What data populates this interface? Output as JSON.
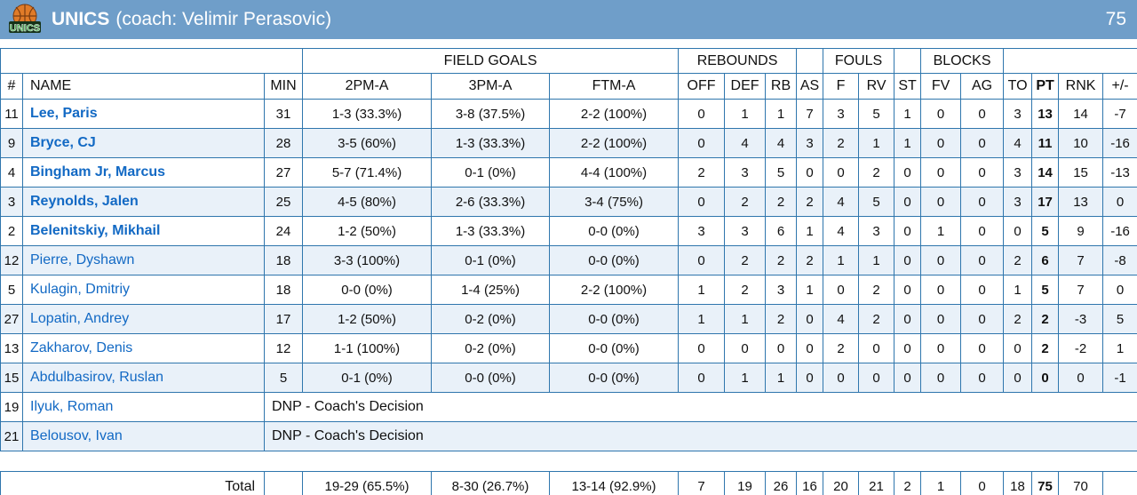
{
  "header": {
    "team_name": "UNICS",
    "coach_label": "(coach: Velimir Perasovic)",
    "score": "75",
    "bar_color": "#6f9ec9",
    "logo_icon": "unics-basketball-logo"
  },
  "colors": {
    "border": "#2f76ad",
    "row_stripe": "#e9f1f9",
    "total_row_bg": "#dbe8f5",
    "player_link": "#1269c4",
    "header_bar": "#6f9ec9"
  },
  "table": {
    "group_headers": [
      {
        "label": "",
        "span": 3
      },
      {
        "label": "FIELD GOALS",
        "span": 3
      },
      {
        "label": "REBOUNDS",
        "span": 3
      },
      {
        "label": "",
        "span": 1
      },
      {
        "label": "FOULS",
        "span": 2
      },
      {
        "label": "",
        "span": 1
      },
      {
        "label": "BLOCKS",
        "span": 2
      },
      {
        "label": "",
        "span": 4
      }
    ],
    "columns": [
      "#",
      "NAME",
      "MIN",
      "2PM-A",
      "3PM-A",
      "FTM-A",
      "OFF",
      "DEF",
      "RB",
      "AS",
      "F",
      "RV",
      "ST",
      "FV",
      "AG",
      "TO",
      "PT",
      "RNK",
      "+/-"
    ],
    "players": [
      {
        "num": "11",
        "name": "Lee, Paris",
        "starter": true,
        "min": "31",
        "fg2": "1-3 (33.3%)",
        "fg3": "3-8 (37.5%)",
        "ft": "2-2 (100%)",
        "off": "0",
        "def": "1",
        "rb": "1",
        "as": "7",
        "f": "3",
        "rv": "5",
        "st": "1",
        "fv": "0",
        "ag": "0",
        "to": "3",
        "pt": "13",
        "rnk": "14",
        "pm": "-7"
      },
      {
        "num": "9",
        "name": "Bryce, CJ",
        "starter": true,
        "min": "28",
        "fg2": "3-5 (60%)",
        "fg3": "1-3 (33.3%)",
        "ft": "2-2 (100%)",
        "off": "0",
        "def": "4",
        "rb": "4",
        "as": "3",
        "f": "2",
        "rv": "1",
        "st": "1",
        "fv": "0",
        "ag": "0",
        "to": "4",
        "pt": "11",
        "rnk": "10",
        "pm": "-16"
      },
      {
        "num": "4",
        "name": "Bingham Jr, Marcus",
        "starter": true,
        "min": "27",
        "fg2": "5-7 (71.4%)",
        "fg3": "0-1 (0%)",
        "ft": "4-4 (100%)",
        "off": "2",
        "def": "3",
        "rb": "5",
        "as": "0",
        "f": "0",
        "rv": "2",
        "st": "0",
        "fv": "0",
        "ag": "0",
        "to": "3",
        "pt": "14",
        "rnk": "15",
        "pm": "-13"
      },
      {
        "num": "3",
        "name": "Reynolds, Jalen",
        "starter": true,
        "min": "25",
        "fg2": "4-5 (80%)",
        "fg3": "2-6 (33.3%)",
        "ft": "3-4 (75%)",
        "off": "0",
        "def": "2",
        "rb": "2",
        "as": "2",
        "f": "4",
        "rv": "5",
        "st": "0",
        "fv": "0",
        "ag": "0",
        "to": "3",
        "pt": "17",
        "rnk": "13",
        "pm": "0"
      },
      {
        "num": "2",
        "name": "Belenitskiy, Mikhail",
        "starter": true,
        "min": "24",
        "fg2": "1-2 (50%)",
        "fg3": "1-3 (33.3%)",
        "ft": "0-0 (0%)",
        "off": "3",
        "def": "3",
        "rb": "6",
        "as": "1",
        "f": "4",
        "rv": "3",
        "st": "0",
        "fv": "1",
        "ag": "0",
        "to": "0",
        "pt": "5",
        "rnk": "9",
        "pm": "-16"
      },
      {
        "num": "12",
        "name": "Pierre, Dyshawn",
        "starter": false,
        "min": "18",
        "fg2": "3-3 (100%)",
        "fg3": "0-1 (0%)",
        "ft": "0-0 (0%)",
        "off": "0",
        "def": "2",
        "rb": "2",
        "as": "2",
        "f": "1",
        "rv": "1",
        "st": "0",
        "fv": "0",
        "ag": "0",
        "to": "2",
        "pt": "6",
        "rnk": "7",
        "pm": "-8"
      },
      {
        "num": "5",
        "name": "Kulagin, Dmitriy",
        "starter": false,
        "min": "18",
        "fg2": "0-0 (0%)",
        "fg3": "1-4 (25%)",
        "ft": "2-2 (100%)",
        "off": "1",
        "def": "2",
        "rb": "3",
        "as": "1",
        "f": "0",
        "rv": "2",
        "st": "0",
        "fv": "0",
        "ag": "0",
        "to": "1",
        "pt": "5",
        "rnk": "7",
        "pm": "0"
      },
      {
        "num": "27",
        "name": "Lopatin, Andrey",
        "starter": false,
        "min": "17",
        "fg2": "1-2 (50%)",
        "fg3": "0-2 (0%)",
        "ft": "0-0 (0%)",
        "off": "1",
        "def": "1",
        "rb": "2",
        "as": "0",
        "f": "4",
        "rv": "2",
        "st": "0",
        "fv": "0",
        "ag": "0",
        "to": "2",
        "pt": "2",
        "rnk": "-3",
        "pm": "5"
      },
      {
        "num": "13",
        "name": "Zakharov, Denis",
        "starter": false,
        "min": "12",
        "fg2": "1-1 (100%)",
        "fg3": "0-2 (0%)",
        "ft": "0-0 (0%)",
        "off": "0",
        "def": "0",
        "rb": "0",
        "as": "0",
        "f": "2",
        "rv": "0",
        "st": "0",
        "fv": "0",
        "ag": "0",
        "to": "0",
        "pt": "2",
        "rnk": "-2",
        "pm": "1"
      },
      {
        "num": "15",
        "name": "Abdulbasirov, Ruslan",
        "starter": false,
        "min": "5",
        "fg2": "0-1 (0%)",
        "fg3": "0-0 (0%)",
        "ft": "0-0 (0%)",
        "off": "0",
        "def": "1",
        "rb": "1",
        "as": "0",
        "f": "0",
        "rv": "0",
        "st": "0",
        "fv": "0",
        "ag": "0",
        "to": "0",
        "pt": "0",
        "rnk": "0",
        "pm": "-1"
      }
    ],
    "dnp_players": [
      {
        "num": "19",
        "name": "Ilyuk, Roman",
        "note": "DNP - Coach's Decision"
      },
      {
        "num": "21",
        "name": "Belousov, Ivan",
        "note": "DNP - Coach's Decision"
      }
    ],
    "total": {
      "label": "Total",
      "min": "",
      "fg2": "19-29 (65.5%)",
      "fg3": "8-30 (26.7%)",
      "ft": "13-14 (92.9%)",
      "off": "7",
      "def": "19",
      "rb": "26",
      "as": "16",
      "f": "20",
      "rv": "21",
      "st": "2",
      "fv": "1",
      "ag": "0",
      "to": "18",
      "pt": "75",
      "rnk": "70",
      "pm": ""
    }
  }
}
